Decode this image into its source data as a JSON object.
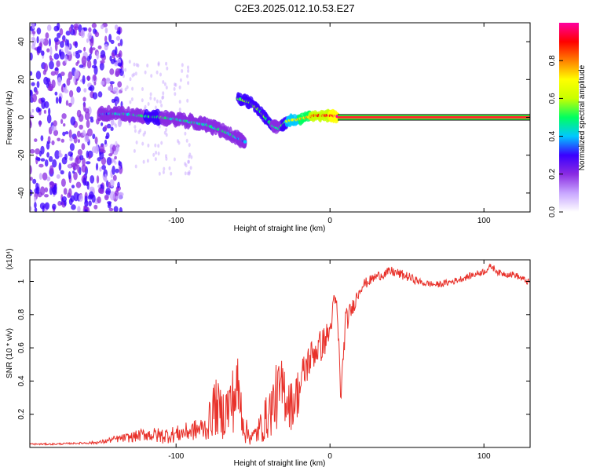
{
  "chart_data": [
    {
      "type": "heatmap",
      "title": "C2E3.2025.012.10.53.E27",
      "xlabel": "Height of straight line (km)",
      "ylabel": "Frequency (Hz)",
      "xlim": [
        -195,
        130
      ],
      "ylim": [
        -50,
        50
      ],
      "xticks": [
        "-100",
        "0",
        "100"
      ],
      "xtick_values": [
        -100,
        0,
        100
      ],
      "yticks": [
        "-40",
        "-20",
        "0",
        "20",
        "40"
      ],
      "ytick_values": [
        -40,
        -20,
        0,
        20,
        40
      ],
      "colorbar": {
        "label": "Normalized spectral amplitude",
        "range": [
          0,
          1
        ],
        "ticks": [
          "0.0",
          "0.2",
          "0.4",
          "0.6",
          "0.8"
        ],
        "tick_values": [
          0.0,
          0.2,
          0.4,
          0.6,
          0.8
        ],
        "colors": [
          "#ffffff",
          "#c8a6ff",
          "#8a2be2",
          "#3a00ff",
          "#00c8ff",
          "#00ff60",
          "#c8ff00",
          "#ffff00",
          "#ff8000",
          "#ff0000",
          "#ff00a0"
        ]
      },
      "noise_region": {
        "x_range": [
          -195,
          -135
        ],
        "frequency_range": [
          -50,
          50
        ]
      },
      "ridge": [
        {
          "x": -150,
          "freq": 1.5,
          "amp": 0.35
        },
        {
          "x": -140,
          "freq": 2.0,
          "amp": 0.4
        },
        {
          "x": -130,
          "freq": 1.5,
          "amp": 0.45
        },
        {
          "x": -120,
          "freq": 0.5,
          "amp": 0.5
        },
        {
          "x": -110,
          "freq": 0.0,
          "amp": 0.5
        },
        {
          "x": -100,
          "freq": -1.0,
          "amp": 0.45
        },
        {
          "x": -90,
          "freq": -2.5,
          "amp": 0.45
        },
        {
          "x": -80,
          "freq": -4.0,
          "amp": 0.45
        },
        {
          "x": -70,
          "freq": -7.0,
          "amp": 0.45
        },
        {
          "x": -60,
          "freq": -11.0,
          "amp": 0.4
        },
        {
          "x": -55,
          "freq": -13.0,
          "amp": 0.35
        }
      ],
      "ridge2": [
        {
          "x": -60,
          "freq": 10.0,
          "amp": 0.55
        },
        {
          "x": -52,
          "freq": 8.0,
          "amp": 0.55
        },
        {
          "x": -45,
          "freq": 3.0,
          "amp": 0.55
        },
        {
          "x": -38,
          "freq": -4.0,
          "amp": 0.5
        },
        {
          "x": -33,
          "freq": -6.0,
          "amp": 0.45
        },
        {
          "x": -28,
          "freq": -2.0,
          "amp": 0.6
        },
        {
          "x": -20,
          "freq": -1.0,
          "amp": 0.7
        },
        {
          "x": -10,
          "freq": 1.0,
          "amp": 0.85
        },
        {
          "x": 0,
          "freq": 1.0,
          "amp": 0.9
        },
        {
          "x": 5,
          "freq": 0.5,
          "amp": 0.95
        }
      ],
      "carrier_line": {
        "x_start": 5,
        "x_end": 130,
        "freq": 0.0,
        "amp": 0.95
      }
    },
    {
      "type": "line",
      "xlabel": "Height of straight line (km)",
      "ylabel": "SNR (10 * v/v)",
      "y_multiplier": "(x10⁴)",
      "xlim": [
        -195,
        130
      ],
      "ylim": [
        0,
        1.13
      ],
      "xticks": [
        "-100",
        "0",
        "100"
      ],
      "xtick_values": [
        -100,
        0,
        100
      ],
      "yticks": [
        "0.2",
        "0.4",
        "0.6",
        "0.8",
        "1"
      ],
      "ytick_values": [
        0.2,
        0.4,
        0.6,
        0.8,
        1.0
      ],
      "color": "#e8312a",
      "series": [
        {
          "x": [
            -195,
            -180,
            -165,
            -150,
            -140,
            -130,
            -120,
            -110,
            -100,
            -90,
            -80,
            -75,
            -70,
            -65,
            -60,
            -55,
            -50,
            -45,
            -40,
            -35,
            -30,
            -25,
            -20,
            -15,
            -10,
            -5,
            0,
            3,
            5,
            7,
            10,
            15,
            20,
            25,
            30,
            40,
            50,
            60,
            70,
            80,
            90,
            100,
            105,
            110,
            120,
            130
          ],
          "y": [
            0.02,
            0.02,
            0.025,
            0.03,
            0.05,
            0.06,
            0.08,
            0.07,
            0.08,
            0.1,
            0.12,
            0.25,
            0.2,
            0.25,
            0.35,
            0.1,
            0.06,
            0.12,
            0.2,
            0.3,
            0.35,
            0.25,
            0.35,
            0.5,
            0.58,
            0.62,
            0.7,
            0.9,
            0.78,
            0.3,
            0.75,
            0.85,
            0.97,
            1.0,
            1.03,
            1.06,
            1.03,
            0.99,
            0.98,
            1.0,
            1.03,
            1.06,
            1.09,
            1.05,
            1.04,
            0.99
          ],
          "amplitude_jitter": [
            0.005,
            0.005,
            0.005,
            0.01,
            0.02,
            0.03,
            0.04,
            0.05,
            0.05,
            0.06,
            0.08,
            0.18,
            0.15,
            0.2,
            0.22,
            0.08,
            0.05,
            0.1,
            0.15,
            0.2,
            0.2,
            0.15,
            0.15,
            0.12,
            0.1,
            0.1,
            0.08,
            0.05,
            0.12,
            0.05,
            0.08,
            0.05,
            0.04,
            0.03,
            0.03,
            0.03,
            0.03,
            0.02,
            0.02,
            0.02,
            0.02,
            0.02,
            0.02,
            0.02,
            0.02,
            0.02
          ]
        }
      ]
    }
  ]
}
